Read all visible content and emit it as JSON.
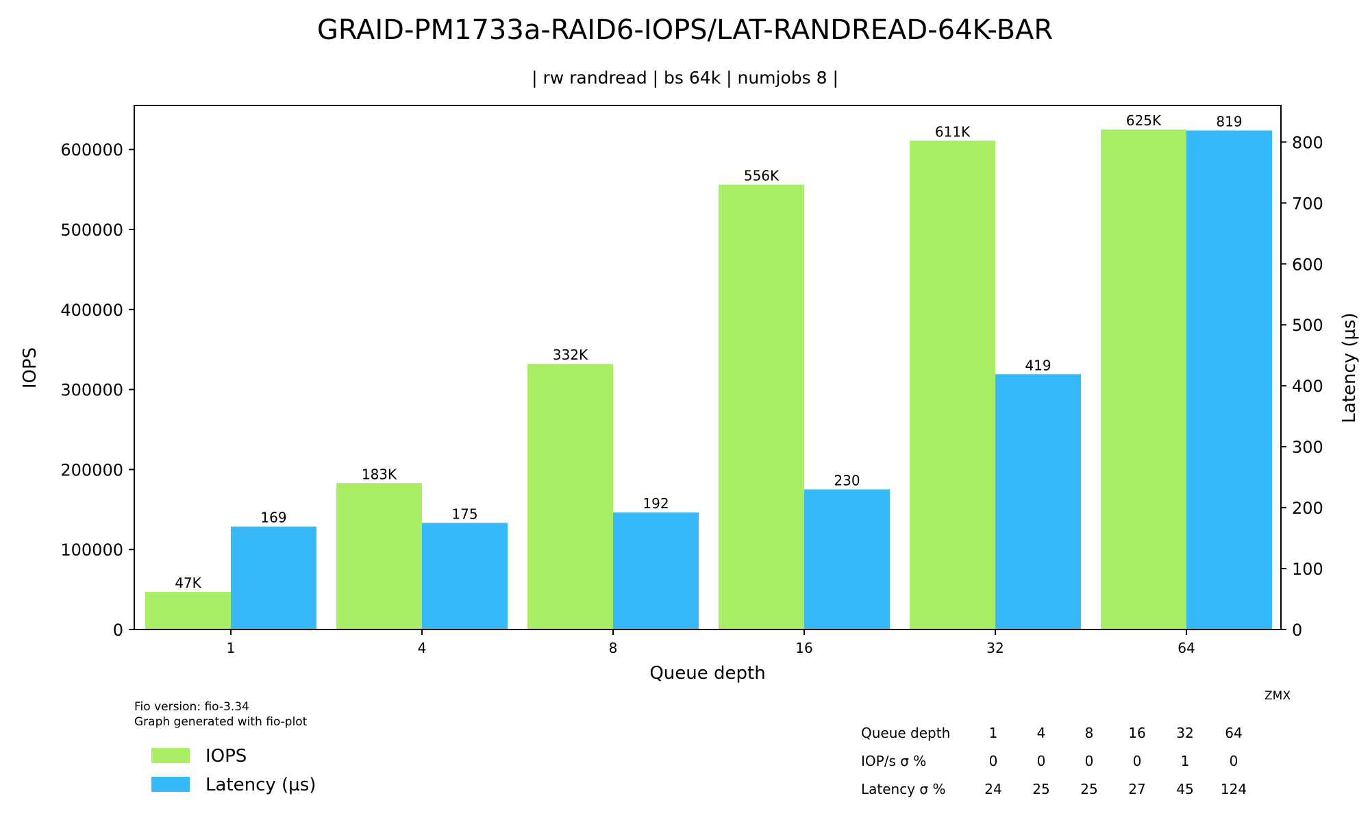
{
  "chart_data": {
    "type": "bar",
    "title": "GRAID-PM1733a-RAID6-IOPS/LAT-RANDREAD-64K-BAR",
    "subtitle": "| rw randread | bs 64k | numjobs 8 |",
    "xlabel": "Queue depth",
    "ylabel": "IOPS",
    "y2label": "Latency (µs)",
    "categories": [
      "1",
      "4",
      "8",
      "16",
      "32",
      "64"
    ],
    "ylim": [
      0,
      655000
    ],
    "y2lim": [
      0,
      860
    ],
    "yticks": [
      "0",
      "100000",
      "200000",
      "300000",
      "400000",
      "500000",
      "600000"
    ],
    "y2ticks": [
      "0",
      "100",
      "200",
      "300",
      "400",
      "500",
      "600",
      "700",
      "800"
    ],
    "grid": false,
    "legend_position": "bottom-left",
    "series": [
      {
        "name": "IOPS",
        "axis": "left",
        "color": "#a8ed65",
        "values": [
          47000,
          183000,
          332000,
          556000,
          611000,
          625000
        ],
        "labels": [
          "47K",
          "183K",
          "332K",
          "556K",
          "611K",
          "625K"
        ]
      },
      {
        "name": "Latency (µs)",
        "axis": "right",
        "color": "#35b9f9",
        "values": [
          169,
          175,
          192,
          230,
          419,
          819
        ],
        "labels": [
          "169",
          "175",
          "192",
          "230",
          "419",
          "819"
        ]
      }
    ],
    "annotations": {
      "fio_version": "Fio version: fio-3.34",
      "generated_with": "Graph generated with fio-plot",
      "watermark": "ZMX"
    },
    "table": {
      "rows": [
        {
          "label": "Queue depth",
          "values": [
            "1",
            "4",
            "8",
            "16",
            "32",
            "64"
          ]
        },
        {
          "label": "IOP/s σ %",
          "values": [
            "0",
            "0",
            "0",
            "0",
            "1",
            "0"
          ]
        },
        {
          "label": "Latency σ %",
          "values": [
            "24",
            "25",
            "25",
            "27",
            "45",
            "124"
          ]
        }
      ]
    }
  }
}
